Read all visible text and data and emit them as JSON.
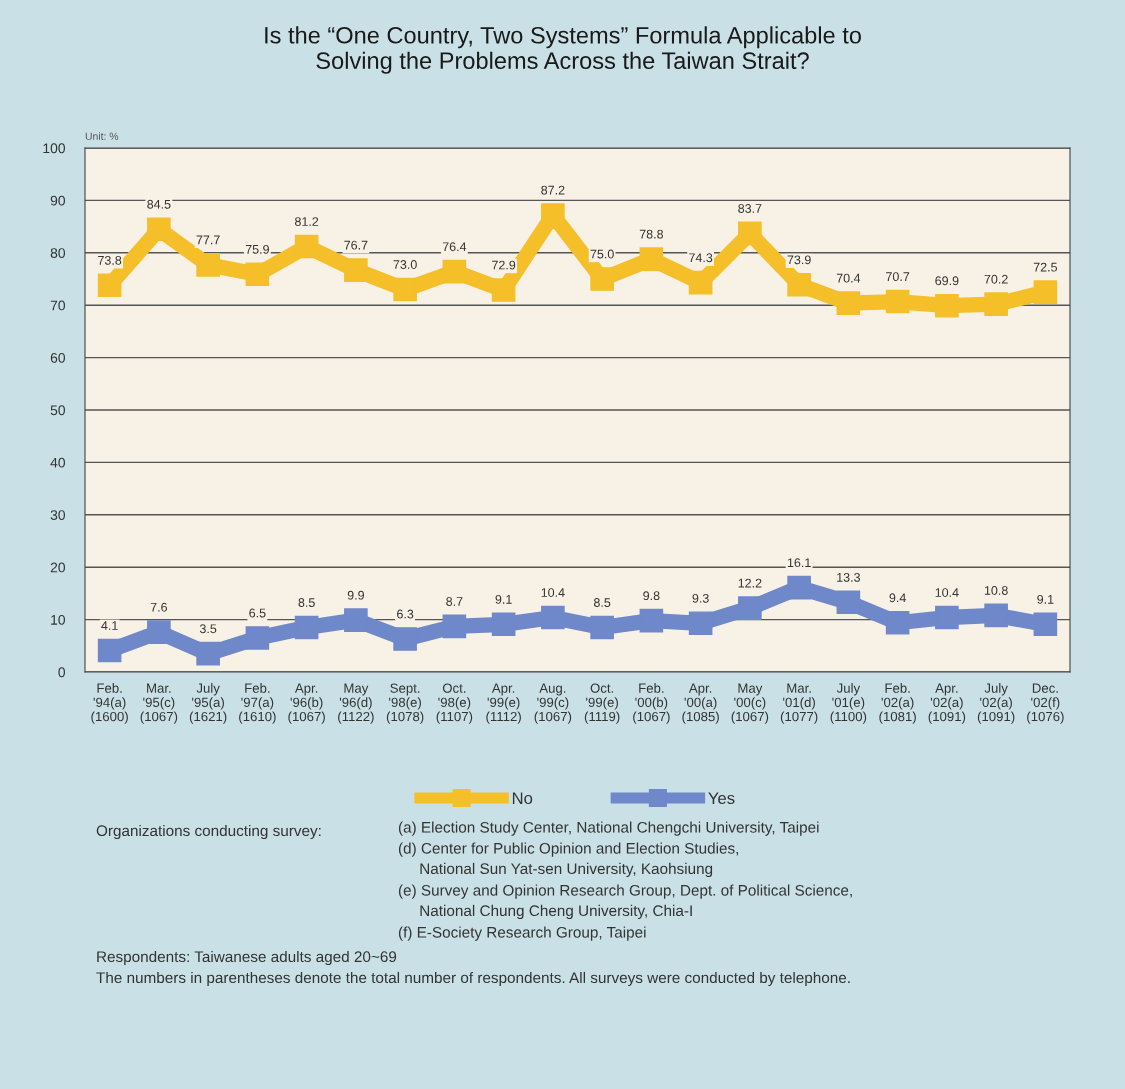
{
  "chart_data": {
    "type": "line",
    "title": "Is the “One Country, Two Systems” Formula Applicable to\nSolving the Problems Across the Taiwan Strait?",
    "categories": [
      "Feb.\n'94(a)\n(1600)",
      "Mar.\n'95(c)\n(1067)",
      "July\n'95(a)\n(1621)",
      "Feb.\n'97(a)\n(1610)",
      "Apr.\n'96(b)\n(1067)",
      "May\n'96(d)\n(1122)",
      "Sept.\n'98(e)\n(1078)",
      "Oct.\n'98(e)\n(1107)",
      "Apr.\n'99(e)\n(1112)",
      "Aug.\n'99(c)\n(1067)",
      "Oct.\n'99(e)\n(1119)",
      "Feb.\n'00(b)\n(1067)",
      "Apr.\n'00(a)\n(1085)",
      "May\n'00(c)\n(1067)",
      "Mar.\n'01(d)\n(1077)",
      "July\n'01(e)\n(1100)",
      "Feb.\n'02(a)\n(1081)",
      "Apr.\n'02(a)\n(1091)",
      "July\n'02(a)\n(1091)",
      "Dec.\n'02(f)\n(1076)"
    ],
    "series": [
      {
        "name": "No",
        "color": "#f5bf2a",
        "values": [
          73.8,
          84.5,
          77.7,
          75.9,
          81.2,
          76.7,
          73.0,
          76.4,
          72.9,
          87.2,
          75.0,
          78.8,
          74.3,
          83.7,
          73.9,
          70.4,
          70.7,
          69.9,
          70.2,
          72.5
        ],
        "value_labels": [
          "73.8",
          "84.5",
          "77.7",
          "75.9",
          "81.2",
          "76.7",
          "73.0",
          "76.4",
          "72.9",
          "87.2",
          "75.0",
          "78.8",
          "74.3",
          "83.7",
          "73.9",
          "70.4",
          "70.7",
          "69.9",
          "70.2",
          "72.5"
        ]
      },
      {
        "name": "Yes",
        "color": "#6f88c9",
        "values": [
          4.1,
          7.6,
          3.5,
          6.5,
          8.5,
          9.9,
          6.3,
          8.7,
          9.1,
          10.4,
          8.5,
          9.8,
          9.3,
          12.2,
          16.1,
          13.3,
          9.4,
          10.4,
          10.8,
          9.1
        ],
        "value_labels": [
          "4.1",
          "7.6",
          "3.5",
          "6.5",
          "8.5",
          "9.9",
          "6.3",
          "8.7",
          "9.1",
          "10.4",
          "8.5",
          "9.8",
          "9.3",
          "12.2",
          "16.1",
          "13.3",
          "9.4",
          "10.4",
          "10.8",
          "9.1"
        ]
      }
    ],
    "ylim": [
      0,
      100
    ],
    "yticks": [
      0,
      10,
      20,
      30,
      40,
      50,
      60,
      70,
      80,
      90,
      100
    ],
    "grid": "y",
    "legend": "bottom",
    "marker": "square",
    "line_style": "solid",
    "annotations": [
      "Unit: %",
      "Organizations conducting survey:",
      "(a) Election Study Center, National Chengchi University, Taipei",
      "(d) Center for Public Opinion and Election Studies,\n     National Sun Yat-sen University, Kaohsiung",
      "(e) Survey and Opinion Research Group, Dept. of Political Science,\n     National Chung Cheng University, Chia-I",
      "(f) E-Society Research Group, Taipei",
      "Respondents: Taiwanese adults aged 20~69",
      "The numbers in parentheses denote the total number of respondents. All surveys were conducted by telephone."
    ]
  }
}
